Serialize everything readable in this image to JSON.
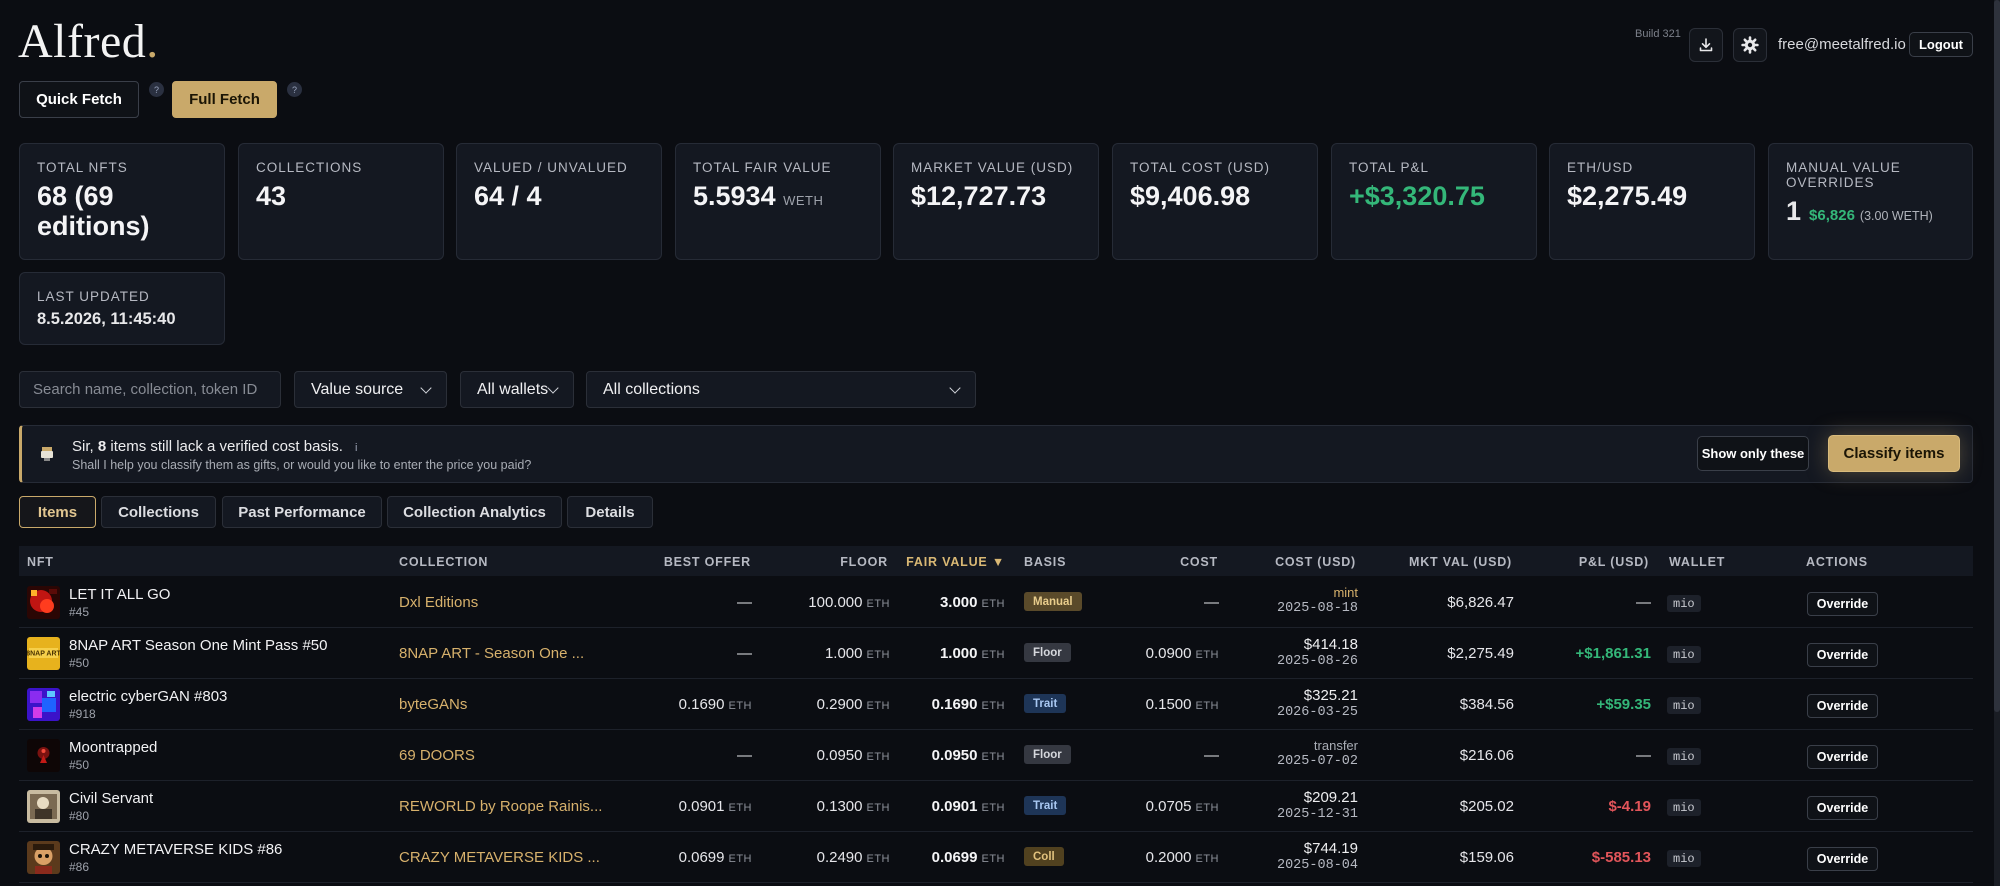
{
  "header": {
    "logo": "Alfred",
    "logo_dot": ".",
    "build": "Build 321",
    "download_icon": "download-icon",
    "settings_icon": "gear-icon",
    "email": "free@meetalfred.io",
    "logout": "Logout"
  },
  "fetch": {
    "quick": "Quick Fetch",
    "full": "Full Fetch",
    "help": "?"
  },
  "stats": {
    "total_nfts": {
      "label": "TOTAL NFTS",
      "value": "68 (69 editions)"
    },
    "collections": {
      "label": "COLLECTIONS",
      "value": "43"
    },
    "valued": {
      "label": "VALUED / UNVALUED",
      "value": "64 / 4"
    },
    "fair_value": {
      "label": "TOTAL FAIR VALUE",
      "value": "5.5934",
      "unit": "WETH"
    },
    "market_value": {
      "label": "MARKET VALUE (USD)",
      "value": "$12,727.73"
    },
    "total_cost": {
      "label": "TOTAL COST (USD)",
      "value": "$9,406.98"
    },
    "pnl": {
      "label": "TOTAL P&L",
      "value": "+$3,320.75"
    },
    "ethusd": {
      "label": "ETH/USD",
      "value": "$2,275.49"
    },
    "overrides": {
      "label": "MANUAL VALUE OVERRIDES",
      "count": "1",
      "usd": "$6,826",
      "weth": "(3.00 WETH)"
    },
    "last_updated": {
      "label": "LAST UPDATED",
      "value": "8.5.2026, 11:45:40"
    }
  },
  "filters": {
    "search_placeholder": "Search name, collection, token ID",
    "value_source": "Value source",
    "wallets": "All wallets",
    "collections": "All collections"
  },
  "banner": {
    "prefix": "Sir, ",
    "count": "8",
    "suffix": " items still lack a verified cost basis.",
    "info": "i",
    "subtext": "Shall I help you classify them as gifts, or would you like to enter the price you paid?",
    "show_only": "Show only these",
    "classify": "Classify items"
  },
  "tabs": [
    {
      "label": "Items"
    },
    {
      "label": "Collections"
    },
    {
      "label": "Past Performance"
    },
    {
      "label": "Collection Analytics"
    },
    {
      "label": "Details"
    }
  ],
  "table": {
    "columns": {
      "nft": "NFT",
      "collection": "COLLECTION",
      "best_offer": "BEST OFFER",
      "floor": "FLOOR",
      "fair_value": "FAIR VALUE ▼",
      "basis": "BASIS",
      "cost": "COST",
      "cost_usd": "COST (USD)",
      "mkt_val": "MKT VAL (USD)",
      "pnl": "P&L (USD)",
      "wallet": "WALLET",
      "actions": "ACTIONS"
    },
    "unit": "ETH",
    "override_label": "Override",
    "rows": [
      {
        "name": "LET IT ALL GO",
        "id": "#45",
        "collection": "Dxl Editions",
        "best_offer": "—",
        "floor": "100.000",
        "fair_value": "3.000",
        "basis": "Manual",
        "cost": "—",
        "cost_usd": "mint",
        "cost_date": "2025-08-18",
        "mkt_val": "$6,826.47",
        "pnl": "—",
        "wallet": "mio"
      },
      {
        "name": "8NAP ART Season One Mint Pass #50",
        "id": "#50",
        "collection": "8NAP ART - Season One ...",
        "best_offer": "—",
        "floor": "1.000",
        "fair_value": "1.000",
        "basis": "Floor",
        "cost": "0.0900",
        "cost_usd": "$414.18",
        "cost_date": "2025-08-26",
        "mkt_val": "$2,275.49",
        "pnl": "+$1,861.31",
        "wallet": "mio"
      },
      {
        "name": "electric cyberGAN #803",
        "id": "#918",
        "collection": "byteGANs",
        "best_offer": "0.1690",
        "floor": "0.2900",
        "fair_value": "0.1690",
        "basis": "Trait",
        "cost": "0.1500",
        "cost_usd": "$325.21",
        "cost_date": "2026-03-25",
        "mkt_val": "$384.56",
        "pnl": "+$59.35",
        "wallet": "mio"
      },
      {
        "name": "Moontrapped",
        "id": "#50",
        "collection": "69 DOORS",
        "best_offer": "—",
        "floor": "0.0950",
        "fair_value": "0.0950",
        "basis": "Floor",
        "cost": "—",
        "cost_usd": "transfer",
        "cost_date": "2025-07-02",
        "mkt_val": "$216.06",
        "pnl": "—",
        "wallet": "mio"
      },
      {
        "name": "Civil Servant",
        "id": "#80",
        "collection": "REWORLD by Roope Rainis...",
        "best_offer": "0.0901",
        "floor": "0.1300",
        "fair_value": "0.0901",
        "basis": "Trait",
        "cost": "0.0705",
        "cost_usd": "$209.21",
        "cost_date": "2025-12-31",
        "mkt_val": "$205.02",
        "pnl": "$-4.19",
        "wallet": "mio"
      },
      {
        "name": "CRAZY METAVERSE KIDS #86",
        "id": "#86",
        "collection": "CRAZY METAVERSE KIDS ...",
        "best_offer": "0.0699",
        "floor": "0.2490",
        "fair_value": "0.0699",
        "basis": "Coll",
        "cost": "0.2000",
        "cost_usd": "$744.19",
        "cost_date": "2025-08-04",
        "mkt_val": "$159.06",
        "pnl": "$-585.13",
        "wallet": "mio"
      }
    ]
  }
}
